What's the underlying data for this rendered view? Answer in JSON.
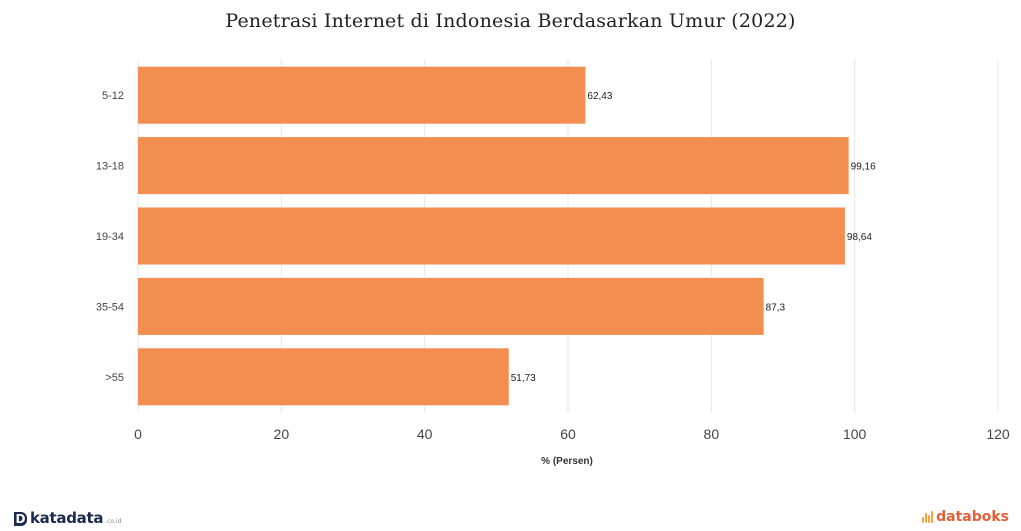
{
  "chart_data": {
    "type": "bar",
    "orientation": "horizontal",
    "title": "Penetrasi Internet di Indonesia Berdasarkan Umur (2022)",
    "xlabel": "% (Persen)",
    "ylabel": "",
    "categories": [
      "5-12",
      "13-18",
      "19-34",
      "35-54",
      ">55"
    ],
    "values": [
      62.43,
      99.16,
      98.64,
      87.3,
      51.73
    ],
    "value_labels": [
      "62,43",
      "99,16",
      "98,64",
      "87,3",
      "51,73"
    ],
    "xlim": [
      0,
      120
    ],
    "xticks": [
      0,
      20,
      40,
      60,
      80,
      100,
      120
    ],
    "grid": true,
    "bar_color": "#f28f50"
  },
  "footer": {
    "left_logo_mark": "D",
    "left_brand": "katadata",
    "left_suffix": ".co.id",
    "right_brand": "databoks"
  },
  "colors": {
    "accent_katadata": "#1d2a4f",
    "accent_databoks": "#e35f3a"
  }
}
